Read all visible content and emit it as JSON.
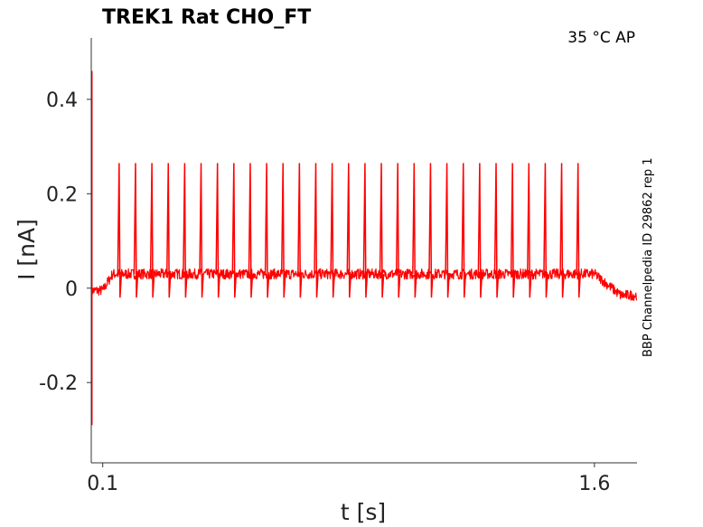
{
  "chart_data": {
    "type": "line",
    "title": "TREK1  Rat  CHO_FT",
    "annotation": "35 °C  AP",
    "side_label": "BBP Channelpedia ID 29862 rep 1",
    "xlabel": "t [s]",
    "ylabel": "I [nA]",
    "xlim": [
      0.065,
      1.73
    ],
    "ylim": [
      -0.37,
      0.53
    ],
    "x_ticks": [
      0.1,
      1.6
    ],
    "x_tick_labels": [
      "0.1",
      "1.6"
    ],
    "y_ticks": [
      -0.2,
      0,
      0.2,
      0.4
    ],
    "y_tick_labels": [
      "-0.2",
      "0",
      "0.2",
      "0.4"
    ],
    "grid": false,
    "series": [
      {
        "color": "#ff0000",
        "baseline_before": -0.005,
        "baseline_during": 0.03,
        "baseline_after": -0.015,
        "stimulus_start": 0.1,
        "stimulus_end": 1.6,
        "onset_transient": {
          "x": 0.067,
          "ymin": -0.29,
          "ymax": 0.46
        },
        "spike_peak": 0.265,
        "spike_trough": -0.02,
        "spike_times": [
          0.15,
          0.2,
          0.25,
          0.3,
          0.35,
          0.4,
          0.45,
          0.5,
          0.55,
          0.6,
          0.65,
          0.7,
          0.75,
          0.8,
          0.85,
          0.9,
          0.95,
          1.0,
          1.05,
          1.1,
          1.15,
          1.2,
          1.25,
          1.3,
          1.35,
          1.4,
          1.45,
          1.5,
          1.55
        ]
      }
    ]
  }
}
